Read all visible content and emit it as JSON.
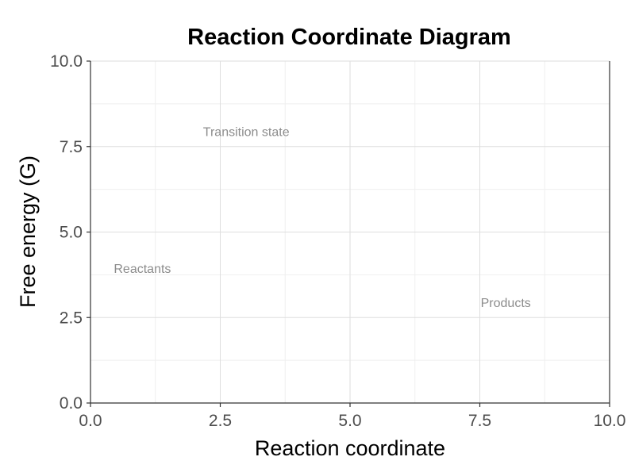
{
  "chart_data": {
    "type": "scatter",
    "title": "Reaction Coordinate Diagram",
    "xlabel": "Reaction coordinate",
    "ylabel": "Free energy (G)",
    "xlim": [
      0,
      10
    ],
    "ylim": [
      0,
      10
    ],
    "x_ticks": [
      0,
      2.5,
      5,
      7.5,
      10
    ],
    "x_tick_labels": [
      "0.0",
      "2.5",
      "5.0",
      "7.5",
      "10.0"
    ],
    "y_ticks": [
      0,
      2.5,
      5,
      7.5,
      10
    ],
    "y_tick_labels": [
      "0.0",
      "2.5",
      "5.0",
      "7.5",
      "10.0"
    ],
    "grid": true,
    "annotations": [
      {
        "text": "Reactants",
        "x": 1.0,
        "y": 3.95
      },
      {
        "text": "Transition state",
        "x": 3.0,
        "y": 7.95
      },
      {
        "text": "Products",
        "x": 8.0,
        "y": 2.95
      }
    ],
    "colors": {
      "annotation": "#8c8c8c",
      "grid_major": "#dedede",
      "grid_minor": "#efefef",
      "axis": "#333333",
      "tick_label": "#4d4d4d"
    }
  }
}
